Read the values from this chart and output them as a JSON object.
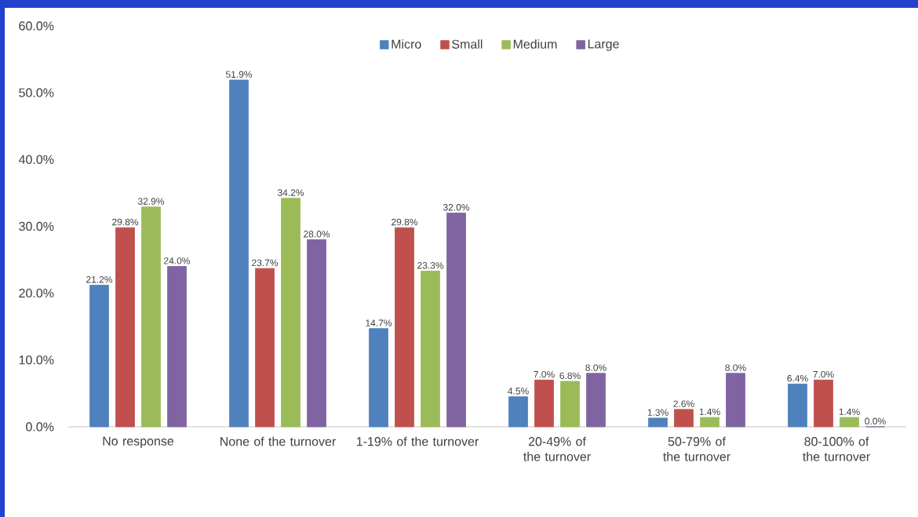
{
  "chart_data": {
    "type": "bar",
    "categories": [
      "No response",
      "None of the turnover",
      "1-19% of the turnover",
      "20-49% of the turnover",
      "50-79% of the turnover",
      "80-100% of the turnover"
    ],
    "series": [
      {
        "name": "Micro",
        "color": "#4f81bd",
        "values": [
          21.2,
          51.9,
          14.7,
          4.5,
          1.3,
          6.4
        ],
        "value_labels": [
          "21.2%",
          "51.9%",
          "14.7%",
          "4.5%",
          "1.3%",
          "6.4%"
        ]
      },
      {
        "name": "Small",
        "color": "#c0504d",
        "values": [
          29.8,
          23.7,
          29.8,
          7.0,
          2.6,
          7.0
        ],
        "value_labels": [
          "29.8%",
          "23.7%",
          "29.8%",
          "7.0%",
          "2.6%",
          "7.0%"
        ]
      },
      {
        "name": "Medium",
        "color": "#9bbb59",
        "values": [
          32.9,
          34.2,
          23.3,
          6.8,
          1.4,
          1.4
        ],
        "value_labels": [
          "32.9%",
          "34.2%",
          "23.3%",
          "6.8%",
          "1.4%",
          "1.4%"
        ]
      },
      {
        "name": "Large",
        "color": "#8064a2",
        "values": [
          24.0,
          28.0,
          32.0,
          8.0,
          8.0,
          0.0
        ],
        "value_labels": [
          "24.0%",
          "28.0%",
          "32.0%",
          "8.0%",
          "8.0%",
          "0.0%"
        ]
      }
    ],
    "ylim": [
      0,
      60
    ],
    "yticks": [
      {
        "value": 0,
        "label": "0.0%"
      },
      {
        "value": 10,
        "label": "10.0%"
      },
      {
        "value": 20,
        "label": "20.0%"
      },
      {
        "value": 30,
        "label": "30.0%"
      },
      {
        "value": 40,
        "label": "40.0%"
      },
      {
        "value": 50,
        "label": "50.0%"
      },
      {
        "value": 60,
        "label": "60.0%"
      }
    ],
    "legend": "top"
  }
}
